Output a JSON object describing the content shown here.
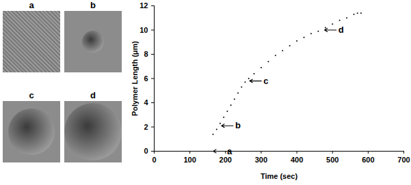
{
  "chart_data": {
    "type": "scatter",
    "marker": "dot",
    "color": "#000000",
    "x_label": "Time (sec)",
    "y_label": "Polymer Length (μm)",
    "x": [
      165,
      175,
      185,
      195,
      205,
      215,
      225,
      235,
      245,
      255,
      265,
      280,
      300,
      320,
      340,
      360,
      380,
      400,
      420,
      440,
      460,
      480,
      500,
      520,
      540,
      560,
      570,
      580
    ],
    "values": [
      1.4,
      1.8,
      2.3,
      2.8,
      3.3,
      3.8,
      4.3,
      4.8,
      5.3,
      5.7,
      6.0,
      6.4,
      6.9,
      7.4,
      7.9,
      8.3,
      8.7,
      9.1,
      9.4,
      9.7,
      9.9,
      10.2,
      10.5,
      10.8,
      11.0,
      11.3,
      11.4,
      11.4
    ],
    "xlim": [
      0,
      700
    ],
    "xticks": [
      0,
      100,
      200,
      300,
      400,
      500,
      600,
      700
    ],
    "ylim": [
      0,
      12
    ],
    "yticks": [
      0,
      2,
      4,
      6,
      8,
      10,
      12
    ],
    "grid": false,
    "annotations": [
      {
        "text": "a",
        "x": 160,
        "y": 0
      },
      {
        "text": "b",
        "x": 183,
        "y": 2.1
      },
      {
        "text": "c",
        "x": 262,
        "y": 5.8
      },
      {
        "text": "d",
        "x": 472,
        "y": 10.0
      }
    ]
  },
  "image_panels": [
    "a",
    "b",
    "c",
    "d"
  ]
}
